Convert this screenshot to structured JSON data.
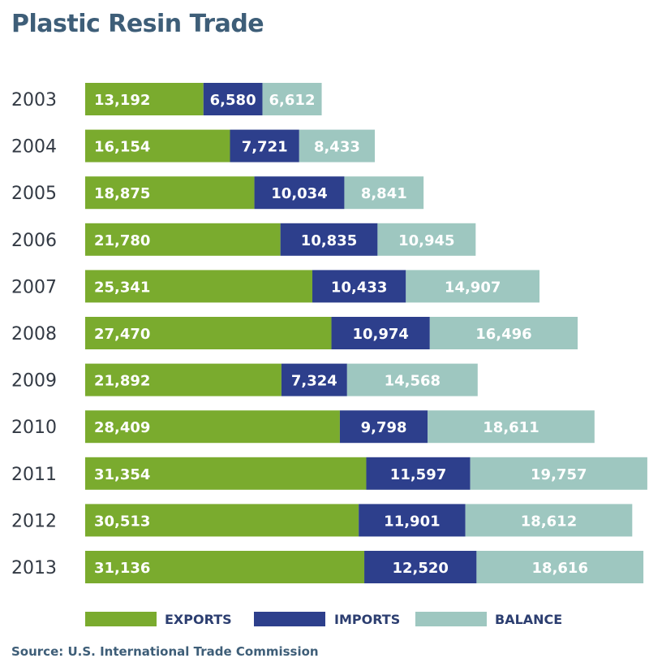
{
  "title": "Plastic Resin Trade",
  "source": "Source: U.S. International Trade Commission",
  "colors": {
    "exports": "#7aab2e",
    "imports": "#2d3f8c",
    "balance": "#9ec7c0",
    "title": "#3e5e78"
  },
  "chart_data": {
    "type": "bar",
    "orientation": "horizontal",
    "stacked": true,
    "title": "Plastic Resin Trade",
    "categories": [
      "2003",
      "2004",
      "2005",
      "2006",
      "2007",
      "2008",
      "2009",
      "2010",
      "2011",
      "2012",
      "2013"
    ],
    "series": [
      {
        "name": "EXPORTS",
        "color": "#7aab2e",
        "values": [
          13192,
          16154,
          18875,
          21780,
          25341,
          27470,
          21892,
          28409,
          31354,
          30513,
          31136
        ],
        "labels": [
          "13,192",
          "16,154",
          "18,875",
          "21,780",
          "25,341",
          "27,470",
          "21,892",
          "28,409",
          "31,354",
          "30,513",
          "31,136"
        ]
      },
      {
        "name": "IMPORTS",
        "color": "#2d3f8c",
        "values": [
          6580,
          7721,
          10034,
          10835,
          10433,
          10974,
          7324,
          9798,
          11597,
          11901,
          12520
        ],
        "labels": [
          "6,580",
          "7,721",
          "10,034",
          "10,835",
          "10,433",
          "10,974",
          "7,324",
          "9,798",
          "11,597",
          "11,901",
          "12,520"
        ]
      },
      {
        "name": "BALANCE",
        "color": "#9ec7c0",
        "values": [
          6612,
          8433,
          8841,
          10945,
          14907,
          16496,
          14568,
          18611,
          19757,
          18612,
          18616
        ],
        "labels": [
          "6,612",
          "8,433",
          "8,841",
          "10,945",
          "14,907",
          "16,496",
          "14,568",
          "18,611",
          "19,757",
          "18,612",
          "18,616"
        ]
      }
    ],
    "legend": {
      "position": "bottom",
      "items": [
        "EXPORTS",
        "IMPORTS",
        "BALANCE"
      ]
    },
    "grid": false
  }
}
